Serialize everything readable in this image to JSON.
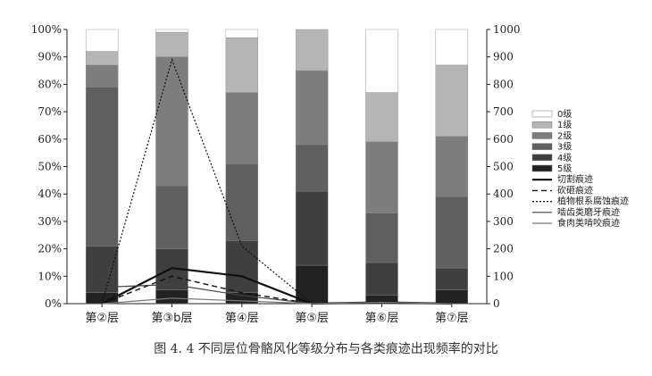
{
  "caption": "图 4. 4    不同层位骨骼风化等级分布与各类痕迹出现频率的对比",
  "chart_data": {
    "type": "bar",
    "stacked": true,
    "categories": [
      "第②层",
      "第③b层",
      "第④层",
      "第⑤层",
      "第⑥层",
      "第⑦层"
    ],
    "left_axis": {
      "ticks": [
        "0%",
        "10%",
        "20%",
        "30%",
        "40%",
        "50%",
        "60%",
        "70%",
        "80%",
        "90%",
        "100%"
      ],
      "range": [
        0,
        100
      ]
    },
    "right_axis": {
      "ticks": [
        "0",
        "100",
        "200",
        "300",
        "400",
        "500",
        "600",
        "700",
        "800",
        "900",
        "1000"
      ],
      "range": [
        0,
        1000
      ]
    },
    "bar_series": [
      {
        "name": "0级",
        "color": "#ffffff",
        "values": [
          8,
          1,
          3,
          0,
          23,
          13
        ]
      },
      {
        "name": "1级",
        "color": "#b5b5b5",
        "values": [
          5,
          9,
          20,
          15,
          18,
          26
        ]
      },
      {
        "name": "2级",
        "color": "#7d7d7d",
        "values": [
          8,
          47,
          26,
          27,
          26,
          22
        ]
      },
      {
        "name": "3级",
        "color": "#5f5f5f",
        "values": [
          58,
          23,
          28,
          17,
          18,
          26
        ]
      },
      {
        "name": "4级",
        "color": "#3f3f3f",
        "values": [
          17,
          15,
          19,
          27,
          12,
          8
        ]
      },
      {
        "name": "5级",
        "color": "#222222",
        "values": [
          4,
          5,
          4,
          14,
          3,
          5
        ]
      }
    ],
    "line_series": [
      {
        "name": "切割痕迹",
        "color": "#111111",
        "width": 2.2,
        "dash": "",
        "values": [
          0,
          130,
          100,
          0,
          5,
          0
        ]
      },
      {
        "name": "砍砸痕迹",
        "color": "#111111",
        "width": 1.4,
        "dash": "6,4",
        "values": [
          0,
          100,
          40,
          0,
          5,
          0
        ]
      },
      {
        "name": "植物根系腐蚀痕迹",
        "color": "#111111",
        "width": 1.2,
        "dash": "2,2",
        "values": [
          0,
          890,
          210,
          0,
          5,
          0
        ]
      },
      {
        "name": "啮齿类磨牙痕迹",
        "color": "#444444",
        "width": 1.2,
        "dash": "",
        "values": [
          60,
          70,
          30,
          0,
          5,
          0
        ]
      },
      {
        "name": "食肉类啃咬痕迹",
        "color": "#777777",
        "width": 1.2,
        "dash": "",
        "values": [
          0,
          20,
          10,
          0,
          5,
          0
        ]
      }
    ],
    "legend_position": "right"
  }
}
